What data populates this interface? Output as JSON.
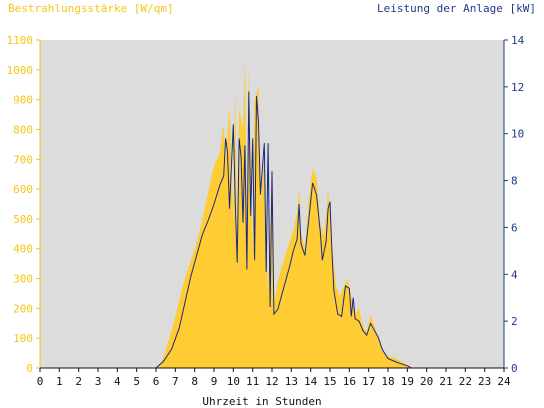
{
  "chart_data": {
    "type": "area",
    "left_axis_title": "Bestrahlungsstärke [W/qm]",
    "right_axis_title": "Leistung der Anlage [kW]",
    "xlabel": "Uhrzeit in Stunden",
    "x_ticks": [
      "0",
      "1",
      "2",
      "3",
      "4",
      "5",
      "6",
      "7",
      "8",
      "9",
      "10",
      "11",
      "12",
      "13",
      "14",
      "15",
      "16",
      "17",
      "18",
      "19",
      "20",
      "21",
      "22",
      "23",
      "24"
    ],
    "xlim": [
      0,
      24
    ],
    "ylim_left": [
      0,
      1100
    ],
    "ylim_right": [
      0,
      14
    ],
    "y_ticks_left": [
      "0",
      "100",
      "200",
      "300",
      "400",
      "500",
      "600",
      "700",
      "800",
      "900",
      "1000",
      "1100"
    ],
    "y_ticks_right": [
      "0",
      "2",
      "4",
      "6",
      "8",
      "10",
      "12",
      "14"
    ],
    "grid": false,
    "colors": {
      "irradiance": "#ffcc33",
      "power": "#1a2a7a",
      "plot_bg": "#dcdcdc",
      "left_axis": "#f5c518",
      "right_axis": "#1f3a8a"
    },
    "series": [
      {
        "axis": "left",
        "points": [
          [
            0,
            0
          ],
          [
            6.0,
            0
          ],
          [
            6.3,
            20
          ],
          [
            6.6,
            80
          ],
          [
            7.0,
            170
          ],
          [
            7.4,
            280
          ],
          [
            7.8,
            360
          ],
          [
            8.2,
            440
          ],
          [
            8.6,
            560
          ],
          [
            9.0,
            680
          ],
          [
            9.3,
            720
          ],
          [
            9.5,
            820
          ],
          [
            9.6,
            700
          ],
          [
            9.8,
            880
          ],
          [
            10.0,
            500
          ],
          [
            10.1,
            950
          ],
          [
            10.2,
            300
          ],
          [
            10.3,
            870
          ],
          [
            10.5,
            800
          ],
          [
            10.6,
            1035
          ],
          [
            10.7,
            450
          ],
          [
            10.8,
            1010
          ],
          [
            11.0,
            380
          ],
          [
            11.1,
            890
          ],
          [
            11.3,
            950
          ],
          [
            11.4,
            550
          ],
          [
            11.6,
            700
          ],
          [
            11.8,
            240
          ],
          [
            12.0,
            650
          ],
          [
            12.1,
            210
          ],
          [
            12.3,
            290
          ],
          [
            12.6,
            360
          ],
          [
            12.9,
            420
          ],
          [
            13.1,
            460
          ],
          [
            13.3,
            520
          ],
          [
            13.4,
            610
          ],
          [
            13.5,
            450
          ],
          [
            13.7,
            400
          ],
          [
            13.9,
            560
          ],
          [
            14.1,
            670
          ],
          [
            14.3,
            640
          ],
          [
            14.5,
            480
          ],
          [
            14.7,
            440
          ],
          [
            14.9,
            600
          ],
          [
            15.1,
            420
          ],
          [
            15.3,
            280
          ],
          [
            15.5,
            240
          ],
          [
            15.7,
            270
          ],
          [
            15.9,
            300
          ],
          [
            16.1,
            240
          ],
          [
            16.3,
            180
          ],
          [
            16.5,
            200
          ],
          [
            16.7,
            140
          ],
          [
            16.9,
            120
          ],
          [
            17.1,
            180
          ],
          [
            17.3,
            140
          ],
          [
            17.5,
            100
          ],
          [
            17.7,
            60
          ],
          [
            18.0,
            40
          ],
          [
            18.3,
            35
          ],
          [
            18.6,
            25
          ],
          [
            19.0,
            10
          ],
          [
            19.3,
            0
          ],
          [
            24,
            0
          ]
        ]
      },
      {
        "axis": "right",
        "points": [
          [
            0,
            0
          ],
          [
            6.0,
            0
          ],
          [
            6.4,
            0.3
          ],
          [
            6.8,
            0.8
          ],
          [
            7.2,
            1.7
          ],
          [
            7.5,
            2.8
          ],
          [
            7.8,
            3.9
          ],
          [
            8.1,
            4.8
          ],
          [
            8.4,
            5.7
          ],
          [
            8.7,
            6.3
          ],
          [
            9.0,
            7.0
          ],
          [
            9.3,
            7.8
          ],
          [
            9.5,
            8.2
          ],
          [
            9.6,
            9.8
          ],
          [
            9.7,
            9.2
          ],
          [
            9.8,
            6.8
          ],
          [
            10.0,
            10.4
          ],
          [
            10.1,
            7.0
          ],
          [
            10.2,
            4.5
          ],
          [
            10.3,
            9.8
          ],
          [
            10.4,
            9.0
          ],
          [
            10.5,
            6.2
          ],
          [
            10.6,
            9.5
          ],
          [
            10.7,
            4.2
          ],
          [
            10.8,
            11.8
          ],
          [
            10.9,
            6.5
          ],
          [
            11.0,
            9.8
          ],
          [
            11.1,
            4.6
          ],
          [
            11.2,
            11.6
          ],
          [
            11.3,
            10.5
          ],
          [
            11.4,
            7.4
          ],
          [
            11.6,
            9.6
          ],
          [
            11.7,
            4.1
          ],
          [
            11.8,
            9.6
          ],
          [
            11.9,
            2.6
          ],
          [
            12.0,
            8.4
          ],
          [
            12.1,
            2.3
          ],
          [
            12.3,
            2.5
          ],
          [
            12.6,
            3.4
          ],
          [
            12.9,
            4.3
          ],
          [
            13.1,
            5.0
          ],
          [
            13.3,
            5.5
          ],
          [
            13.4,
            7.0
          ],
          [
            13.5,
            5.3
          ],
          [
            13.7,
            4.8
          ],
          [
            13.9,
            6.3
          ],
          [
            14.1,
            7.9
          ],
          [
            14.3,
            7.4
          ],
          [
            14.5,
            5.8
          ],
          [
            14.6,
            4.6
          ],
          [
            14.8,
            5.4
          ],
          [
            14.9,
            6.8
          ],
          [
            15.0,
            7.1
          ],
          [
            15.1,
            5.0
          ],
          [
            15.2,
            3.3
          ],
          [
            15.4,
            2.3
          ],
          [
            15.6,
            2.2
          ],
          [
            15.8,
            3.5
          ],
          [
            16.0,
            3.4
          ],
          [
            16.1,
            2.2
          ],
          [
            16.2,
            3.0
          ],
          [
            16.3,
            2.1
          ],
          [
            16.5,
            2.0
          ],
          [
            16.7,
            1.6
          ],
          [
            16.9,
            1.4
          ],
          [
            17.1,
            1.9
          ],
          [
            17.3,
            1.6
          ],
          [
            17.5,
            1.3
          ],
          [
            17.7,
            0.8
          ],
          [
            18.0,
            0.4
          ],
          [
            18.3,
            0.3
          ],
          [
            18.6,
            0.2
          ],
          [
            19.0,
            0.1
          ],
          [
            19.2,
            0
          ],
          [
            24,
            0
          ]
        ]
      }
    ]
  }
}
